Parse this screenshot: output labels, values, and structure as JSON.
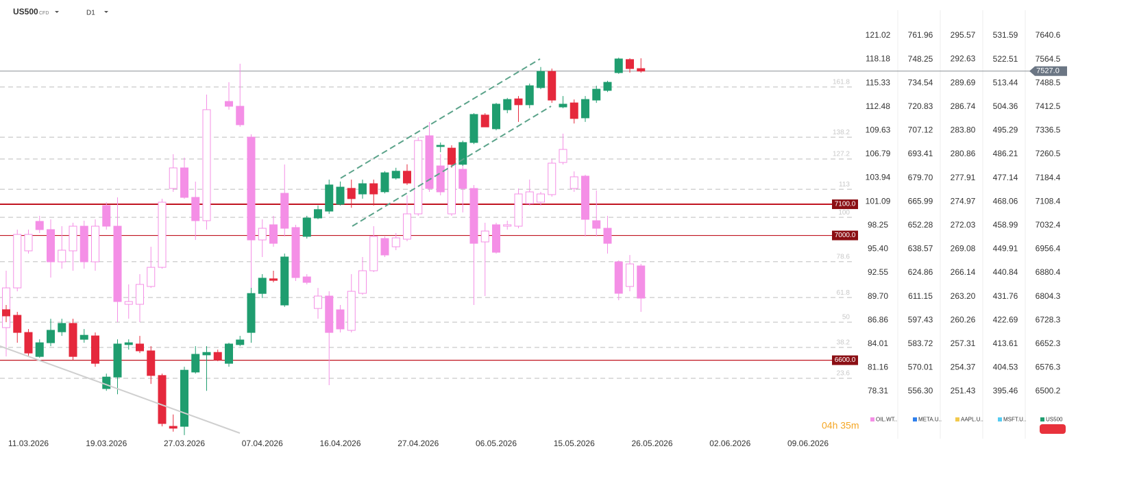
{
  "chart_data": {
    "type": "candlestick",
    "symbol": "US500",
    "instrument": "CFD",
    "timeframe": "D1",
    "countdown": "04h 35m",
    "categories": [
      null,
      null,
      "11.03.2026",
      null,
      null,
      null,
      null,
      null,
      null,
      "19.03.2026",
      null,
      null,
      null,
      null,
      null,
      null,
      "27.03.2026",
      null,
      null,
      null,
      null,
      null,
      null,
      "07.04.2026",
      null,
      null,
      null,
      null,
      null,
      null,
      "16.04.2026",
      null,
      null,
      null,
      null,
      null,
      null,
      "27.04.2026",
      null,
      null,
      null,
      null,
      null,
      null,
      "06.05.2026",
      null,
      null,
      null,
      null,
      null,
      null,
      "15.05.2026",
      null,
      null,
      null,
      null,
      null,
      null,
      "26.05.2026",
      null,
      null,
      null,
      null,
      null,
      null,
      "02.06.2026",
      null,
      null,
      null,
      null,
      null,
      null,
      "09.06.2026"
    ],
    "series": [
      {
        "name": "OIL.WT..",
        "color": "#f48fe6",
        "hollow_up": true,
        "ylim": [
          72.96,
          125.3
        ],
        "yticks": [
          121.02,
          118.18,
          115.33,
          112.48,
          109.63,
          106.79,
          103.94,
          101.09,
          98.25,
          {
            "value": 95.4,
            "label": "95.40"
          },
          92.55,
          {
            "value": 89.7,
            "label": "89.70"
          },
          86.86,
          84.01,
          81.16,
          78.31
        ],
        "open": [
          85.96,
          90.73,
          95.18,
          98.72,
          97.73,
          93.86,
          95.18,
          98.14,
          93.86,
          100.61,
          98.14,
          88.76,
          88.76,
          90.9,
          93.2,
          102.67,
          105.14,
          101.6,
          98.8,
          null,
          113.12,
          112.54,
          108.84,
          96.49,
          98.31,
          102.09,
          97.98,
          92.05,
          88.26,
          89.75,
          88.1,
          85.63,
          90.08,
          92.79,
          96.66,
          95.67,
          96.58,
          99.62,
          109.0,
          105.38,
          99.62,
          104.97,
          102.67,
          96.25,
          98.31,
          98.14,
          98.14,
          100.86,
          101.02,
          101.93,
          105.79,
          102.67,
          104.15,
          98.8,
          97.89,
          93.86,
          90.9,
          93.37,
          null,
          null,
          null,
          null,
          null,
          null,
          null,
          null,
          null,
          null,
          null,
          null,
          null,
          null,
          null
        ],
        "high": [
          92.79,
          97.73,
          97.73,
          99.38,
          98.96,
          98.14,
          98.55,
          98.8,
          98.96,
          101.02,
          101.6,
          91.15,
          92.38,
          95.67,
          101.43,
          106.78,
          106.37,
          103.49,
          113.94,
          null,
          115.42,
          117.65,
          109.17,
          98.96,
          99.38,
          105.55,
          98.31,
          92.38,
          90.73,
          90.32,
          88.68,
          92.38,
          94.44,
          98.14,
          96.91,
          97.32,
          101.84,
          108.84,
          110.65,
          106.78,
          107.61,
          105.96,
          103.08,
          98.55,
          98.55,
          98.8,
          102.67,
          103.74,
          102.26,
          106.21,
          109.25,
          104.72,
          104.31,
          102.42,
          99.38,
          94.03,
          94.68,
          93.61,
          null,
          null,
          null,
          null,
          null,
          null,
          null,
          null,
          null,
          null,
          null,
          null,
          null,
          null,
          null
        ],
        "low": [
          82.5,
          90.32,
          94.85,
          97.32,
          91.97,
          93.04,
          92.79,
          93.04,
          92.79,
          97.73,
          86.62,
          87.03,
          86.62,
          90.73,
          93.04,
          102.26,
          101.43,
          96.49,
          97.73,
          null,
          112.13,
          110.07,
          90.73,
          94.44,
          95.67,
          96.91,
          91.56,
          91.15,
          87.03,
          79.05,
          85.38,
          85.38,
          89.91,
          92.63,
          94.44,
          95.26,
          96.33,
          99.38,
          102.26,
          101.84,
          99.38,
          99.79,
          88.68,
          89.75,
          94.85,
          97.73,
          97.89,
          100.61,
          100.61,
          101.68,
          105.55,
          102.26,
          96.91,
          96.91,
          94.85,
          89.25,
          90.32,
          87.85,
          null,
          null,
          null,
          null,
          null,
          null,
          null,
          null,
          null,
          null,
          null,
          null,
          null,
          null,
          null
        ],
        "close": [
          90.73,
          97.15,
          97.15,
          97.73,
          93.86,
          95.26,
          98.14,
          93.86,
          98.14,
          98.14,
          89.09,
          89.09,
          91.15,
          93.2,
          101.02,
          105.14,
          101.6,
          98.8,
          112.13,
          null,
          112.54,
          110.32,
          96.49,
          97.89,
          96.08,
          97.89,
          91.97,
          91.39,
          89.75,
          85.38,
          85.8,
          90.32,
          92.79,
          96.91,
          94.68,
          96.74,
          99.62,
          108.43,
          102.67,
          102.26,
          105.55,
          102.67,
          96.08,
          97.56,
          95.01,
          98.31,
          102.01,
          102.26,
          102.01,
          105.71,
          107.36,
          104.07,
          98.96,
          97.89,
          96.08,
          90.08,
          93.61,
          89.5,
          null,
          null,
          null,
          null,
          null,
          null,
          null,
          null,
          null,
          null,
          null,
          null,
          null,
          null,
          null
        ]
      },
      {
        "name": "META.U..",
        "color": "#2f80ed",
        "ylim": [
          530.54,
          782.57
        ],
        "yticks": [
          761.96,
          748.25,
          734.54,
          720.83,
          707.12,
          693.41,
          {
            "value": 679.7,
            "label": "679.70"
          },
          665.99,
          652.28,
          638.57,
          624.86,
          611.15,
          597.43,
          583.72,
          570.01,
          {
            "value": 556.3,
            "label": "556.30"
          }
        ]
      },
      {
        "name": "AAPL.U..",
        "color": "#f2c94c",
        "ylim": [
          245.9,
          299.99
        ],
        "yticks": [
          295.57,
          292.63,
          289.69,
          286.74,
          {
            "value": 283.8,
            "label": "283.80"
          },
          280.86,
          277.91,
          274.97,
          272.03,
          269.08,
          266.14,
          {
            "value": 263.2,
            "label": "263.20"
          },
          260.26,
          257.31,
          254.37,
          251.43
        ]
      },
      {
        "name": "MSFT.U..",
        "color": "#56ccf2",
        "ylim": [
          378.41,
          545.23
        ],
        "yticks": [
          531.59,
          522.51,
          513.44,
          504.36,
          495.29,
          486.21,
          477.14,
          468.06,
          458.99,
          449.91,
          440.84,
          431.76,
          422.69,
          413.61,
          404.53,
          395.46
        ]
      },
      {
        "name": "US500",
        "color": "#1f9d6f",
        "down_color": "#e5283c",
        "ylim": [
          6357.4,
          7754.9
        ],
        "yticks": [
          7640.6,
          7564.5,
          7488.5,
          7412.5,
          7336.5,
          7260.5,
          7184.4,
          7108.4,
          7032.4,
          6956.4,
          6880.4,
          6804.3,
          6728.3,
          6652.3,
          6576.3,
          6500.2
        ],
        "last_price": {
          "value": 7527,
          "label": "7527.0"
        },
        "levels_color": "#c0121f",
        "levels": [
          {
            "value": 7100,
            "label": "7100.0"
          },
          {
            "value": 7000,
            "label": "7000.0"
          },
          {
            "value": 6600,
            "label": "6600.0"
          }
        ],
        "fib_levels": [
          {
            "ratio": 161.8,
            "price": 7476
          },
          {
            "ratio": 138.2,
            "price": 7315
          },
          {
            "ratio": 127.2,
            "price": 7245
          },
          {
            "ratio": 113.0,
            "price": 7148
          },
          {
            "ratio": 100.0,
            "price": 7058
          },
          {
            "ratio": 78.6,
            "price": 6916
          },
          {
            "ratio": 61.8,
            "price": 6801
          },
          {
            "ratio": 50.0,
            "price": 6722
          },
          {
            "ratio": 38.2,
            "price": 6641
          },
          {
            "ratio": 23.6,
            "price": 6542
          }
        ],
        "open": [
          6762,
          6744,
          6689,
          6612,
          6656,
          6691,
          6718,
          6667,
          6678,
          6509,
          6546,
          6650,
          6652,
          6630,
          6551,
          6388,
          6388,
          6562,
          6617,
          6625,
          6590,
          6650,
          6689,
          6814,
          6861,
          6777,
          null,
          6997,
          7056,
          7078,
          7100,
          7151,
          7133,
          7166,
          7140,
          7184,
          7206,
          null,
          null,
          7285,
          7280,
          7228,
          7298,
          7386,
          7342,
          7403,
          7438,
          7419,
          7474,
          7526,
          7412,
          7425,
          7377,
          7434,
          7465,
          7522,
          7564,
          7535,
          null,
          null,
          null,
          null,
          null,
          null,
          null,
          null,
          null,
          null,
          null,
          null,
          null,
          null,
          null
        ],
        "high": [
          6777,
          6755,
          6700,
          6667,
          6733,
          6733,
          6733,
          6700,
          6689,
          6557,
          6667,
          6667,
          6678,
          6645,
          6557,
          6426,
          6579,
          6645,
          6645,
          6634,
          6656,
          6678,
          6832,
          6876,
          6887,
          6942,
          null,
          7063,
          7096,
          7179,
          7173,
          7179,
          7179,
          7179,
          7206,
          7217,
          7228,
          null,
          null,
          7298,
          7289,
          7304,
          7392,
          7392,
          7425,
          7441,
          7447,
          7487,
          7540,
          7535,
          7447,
          7436,
          7447,
          7480,
          7496,
          7570,
          7568,
          7568,
          null,
          null,
          null,
          null,
          null,
          null,
          null,
          null,
          null,
          null,
          null,
          null,
          null,
          null,
          null
        ],
        "low": [
          6722,
          6656,
          6612,
          6608,
          6645,
          6678,
          6601,
          6656,
          6579,
          6502,
          6491,
          6634,
          6623,
          6524,
          6388,
          6371,
          6360,
          6557,
          6502,
          6597,
          6579,
          6645,
          6656,
          6799,
          6850,
          6771,
          null,
          6990,
          7052,
          7069,
          7096,
          7089,
          7118,
          7096,
          7135,
          7179,
          7162,
          null,
          null,
          7267,
          7217,
          7223,
          7293,
          7348,
          7337,
          7392,
          7364,
          7408,
          7469,
          7425,
          7408,
          7359,
          7364,
          7425,
          7460,
          7518,
          7522,
          7522,
          null,
          null,
          null,
          null,
          null,
          null,
          null,
          null,
          null,
          null,
          null,
          null,
          null,
          null,
          null
        ],
        "close": [
          6742,
          6689,
          6623,
          6656,
          6696,
          6718,
          6612,
          6680,
          6590,
          6546,
          6652,
          6656,
          6630,
          6551,
          6397,
          6382,
          6568,
          6619,
          6625,
          6601,
          6652,
          6665,
          6814,
          6863,
          6856,
          6931,
          null,
          7056,
          7083,
          7162,
          7155,
          7118,
          7166,
          7133,
          7201,
          7206,
          7168,
          null,
          null,
          7289,
          7228,
          7298,
          7388,
          7348,
          7421,
          7436,
          7419,
          7480,
          7526,
          7434,
          7421,
          7375,
          7436,
          7469,
          7491,
          7566,
          7535,
          7527,
          null,
          null,
          null,
          null,
          null,
          null,
          null,
          null,
          null,
          null,
          null,
          null,
          null,
          null,
          null
        ]
      }
    ]
  }
}
